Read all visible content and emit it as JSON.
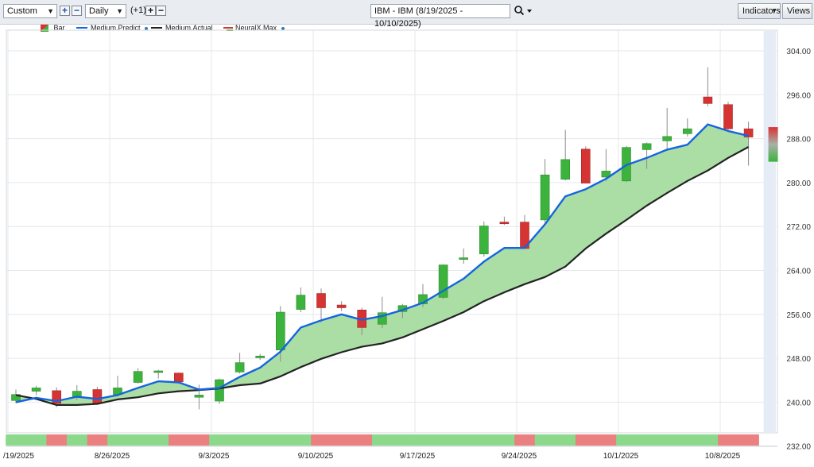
{
  "toolbar": {
    "range_select": "Custom",
    "period_select": "Daily",
    "offset_label": "(+1)",
    "add_icon": "plus-icon",
    "remove_icon": "minus-icon",
    "symbol_title": "IBM - IBM (8/19/2025 - 10/10/2025)",
    "search_icon": "magnifier-icon",
    "indicators_label": "Indicators",
    "views_label": "Views"
  },
  "legend": [
    {
      "label": "Bar",
      "color": "#3cb33c"
    },
    {
      "label": "Medium.Predict",
      "color": "#1565e0"
    },
    {
      "label": "Medium.Actual",
      "color": "#222222"
    },
    {
      "label": "NeuralX.Max",
      "color": "#3cb33c"
    }
  ],
  "colors": {
    "up": "#3cb33c",
    "down": "#d63333",
    "predict": "#1565e0",
    "actual": "#222222",
    "fill": "#a5dca0",
    "band_up": "#8cd98c",
    "band_down": "#ea8080",
    "grid": "#e4e7eb",
    "projection_bg": "#e6ecf5"
  },
  "chart_data": {
    "type": "candlestick",
    "y_ticks": [
      "232.00",
      "240.00",
      "248.00",
      "256.00",
      "264.00",
      "272.00",
      "280.00",
      "288.00",
      "296.00",
      "304.00"
    ],
    "ylim": [
      232,
      304
    ],
    "x_labels": [
      {
        "label": "/19/2025",
        "index": 0
      },
      {
        "label": "8/26/2025",
        "index": 5
      },
      {
        "label": "9/3/2025",
        "index": 10
      },
      {
        "label": "9/10/2025",
        "index": 15
      },
      {
        "label": "9/17/2025",
        "index": 20
      },
      {
        "label": "9/24/2025",
        "index": 25
      },
      {
        "label": "10/1/2025",
        "index": 30
      },
      {
        "label": "10/8/2025",
        "index": 35
      }
    ],
    "candles": [
      {
        "o": 240.3,
        "h": 242.3,
        "l": 239.8,
        "c": 241.4
      },
      {
        "o": 242.0,
        "h": 243.0,
        "l": 241.3,
        "c": 242.6
      },
      {
        "o": 242.1,
        "h": 242.7,
        "l": 239.1,
        "c": 239.8
      },
      {
        "o": 241.0,
        "h": 243.1,
        "l": 240.4,
        "c": 242.0
      },
      {
        "o": 242.3,
        "h": 242.8,
        "l": 239.8,
        "c": 239.8
      },
      {
        "o": 241.4,
        "h": 244.8,
        "l": 241.1,
        "c": 242.6
      },
      {
        "o": 243.6,
        "h": 246.2,
        "l": 243.4,
        "c": 245.6
      },
      {
        "o": 245.6,
        "h": 245.9,
        "l": 244.3,
        "c": 245.7
      },
      {
        "o": 245.3,
        "h": 245.4,
        "l": 243.5,
        "c": 243.7
      },
      {
        "o": 240.9,
        "h": 243.2,
        "l": 238.7,
        "c": 241.3
      },
      {
        "o": 240.2,
        "h": 244.3,
        "l": 239.7,
        "c": 244.1
      },
      {
        "o": 245.5,
        "h": 249.0,
        "l": 245.2,
        "c": 247.2
      },
      {
        "o": 248.1,
        "h": 248.8,
        "l": 247.7,
        "c": 248.4
      },
      {
        "o": 249.5,
        "h": 257.5,
        "l": 247.4,
        "c": 256.4
      },
      {
        "o": 256.9,
        "h": 260.9,
        "l": 256.4,
        "c": 259.5
      },
      {
        "o": 259.8,
        "h": 260.7,
        "l": 254.5,
        "c": 257.2
      },
      {
        "o": 257.7,
        "h": 258.4,
        "l": 256.6,
        "c": 257.2
      },
      {
        "o": 256.8,
        "h": 257.2,
        "l": 252.2,
        "c": 253.6
      },
      {
        "o": 254.2,
        "h": 259.2,
        "l": 253.5,
        "c": 256.3
      },
      {
        "o": 256.5,
        "h": 257.9,
        "l": 255.3,
        "c": 257.6
      },
      {
        "o": 257.9,
        "h": 261.5,
        "l": 257.3,
        "c": 259.6
      },
      {
        "o": 259.1,
        "h": 265.1,
        "l": 258.8,
        "c": 265.0
      },
      {
        "o": 266.1,
        "h": 268.0,
        "l": 265.2,
        "c": 266.3
      },
      {
        "o": 267.0,
        "h": 272.9,
        "l": 266.5,
        "c": 272.1
      },
      {
        "o": 272.8,
        "h": 273.8,
        "l": 272.3,
        "c": 272.5
      },
      {
        "o": 272.8,
        "h": 274.1,
        "l": 267.9,
        "c": 268.0
      },
      {
        "o": 273.2,
        "h": 284.3,
        "l": 272.2,
        "c": 281.4
      },
      {
        "o": 280.6,
        "h": 289.6,
        "l": 280.4,
        "c": 284.2
      },
      {
        "o": 286.1,
        "h": 286.6,
        "l": 279.9,
        "c": 279.9
      },
      {
        "o": 281.0,
        "h": 286.1,
        "l": 280.3,
        "c": 282.1
      },
      {
        "o": 280.3,
        "h": 286.7,
        "l": 280.1,
        "c": 286.4
      },
      {
        "o": 286.0,
        "h": 287.3,
        "l": 282.5,
        "c": 287.1
      },
      {
        "o": 287.6,
        "h": 293.6,
        "l": 285.8,
        "c": 288.4
      },
      {
        "o": 288.9,
        "h": 291.7,
        "l": 288.4,
        "c": 289.8
      },
      {
        "o": 295.6,
        "h": 301.0,
        "l": 293.9,
        "c": 294.4
      },
      {
        "o": 294.2,
        "h": 294.7,
        "l": 289.6,
        "c": 289.8
      },
      {
        "o": 289.8,
        "h": 291.1,
        "l": 283.1,
        "c": 288.3
      }
    ],
    "series": [
      {
        "name": "Medium.Predict",
        "values": [
          240.0,
          240.8,
          240.2,
          241.0,
          240.6,
          241.3,
          242.6,
          243.8,
          243.6,
          242.3,
          242.6,
          244.6,
          246.3,
          249.2,
          253.6,
          254.9,
          256.0,
          255.0,
          255.7,
          256.8,
          258.1,
          260.3,
          262.5,
          265.6,
          268.1,
          268.1,
          272.4,
          277.5,
          278.8,
          280.7,
          283.2,
          284.5,
          286.0,
          286.9,
          290.6,
          289.4,
          288.5
        ]
      },
      {
        "name": "Medium.Actual",
        "values": [
          241.3,
          240.6,
          239.5,
          239.5,
          239.7,
          240.5,
          240.9,
          241.6,
          242.0,
          242.2,
          242.5,
          243.1,
          243.4,
          244.7,
          246.4,
          247.9,
          249.1,
          250.1,
          250.7,
          251.8,
          253.3,
          254.8,
          256.4,
          258.4,
          260.0,
          261.5,
          262.8,
          264.7,
          268.0,
          270.7,
          273.2,
          275.8,
          278.1,
          280.3,
          282.2,
          284.5,
          286.5
        ]
      }
    ],
    "projection": {
      "high": 290.1,
      "low": 283.8
    },
    "bottom_band": [
      "up",
      "up",
      "down",
      "up",
      "down",
      "up",
      "up",
      "up",
      "down",
      "down",
      "up",
      "up",
      "up",
      "up",
      "up",
      "down",
      "down",
      "down",
      "up",
      "up",
      "up",
      "up",
      "up",
      "up",
      "up",
      "down",
      "up",
      "up",
      "down",
      "down",
      "up",
      "up",
      "up",
      "up",
      "up",
      "down",
      "down"
    ]
  }
}
